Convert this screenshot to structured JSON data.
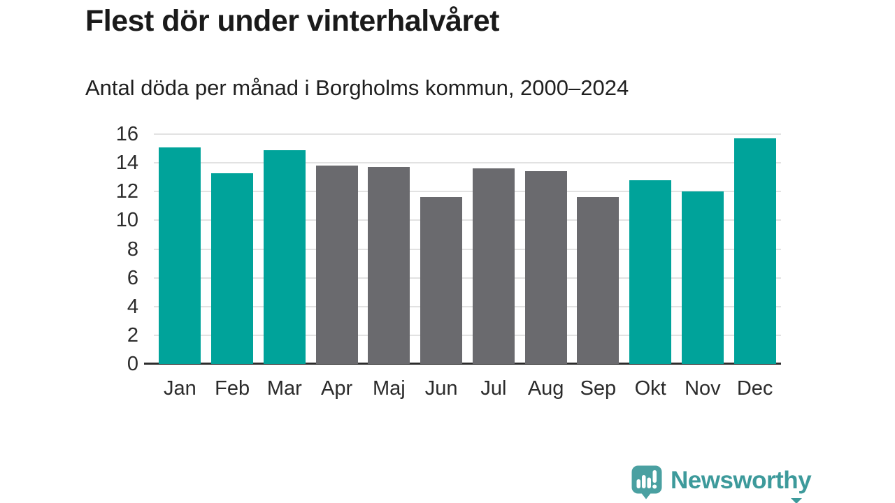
{
  "chart_data": {
    "type": "bar",
    "title": "Flest dör under vinterhalvåret",
    "subtitle": "Antal döda per månad i Borgholms kommun, 2000–2024",
    "categories": [
      "Jan",
      "Feb",
      "Mar",
      "Apr",
      "Maj",
      "Jun",
      "Jul",
      "Aug",
      "Sep",
      "Okt",
      "Nov",
      "Dec"
    ],
    "values": [
      15.1,
      13.3,
      14.9,
      13.8,
      13.7,
      11.6,
      13.6,
      13.4,
      11.6,
      12.8,
      12.0,
      15.7
    ],
    "bar_colors": [
      "#00a39a",
      "#00a39a",
      "#00a39a",
      "#6a6a6e",
      "#6a6a6e",
      "#6a6a6e",
      "#6a6a6e",
      "#6a6a6e",
      "#6a6a6e",
      "#00a39a",
      "#00a39a",
      "#00a39a"
    ],
    "highlight_color": "#00a39a",
    "muted_color": "#6a6a6e",
    "xlabel": "",
    "ylabel": "",
    "ylim": [
      0,
      16
    ],
    "yticks": [
      0,
      2,
      4,
      6,
      8,
      10,
      12,
      14,
      16
    ],
    "grid": true,
    "legend": false
  },
  "footer": {
    "brand": "Newsworthy",
    "logo_color": "#4aa0a1",
    "text_color": "#3d9a9b"
  }
}
